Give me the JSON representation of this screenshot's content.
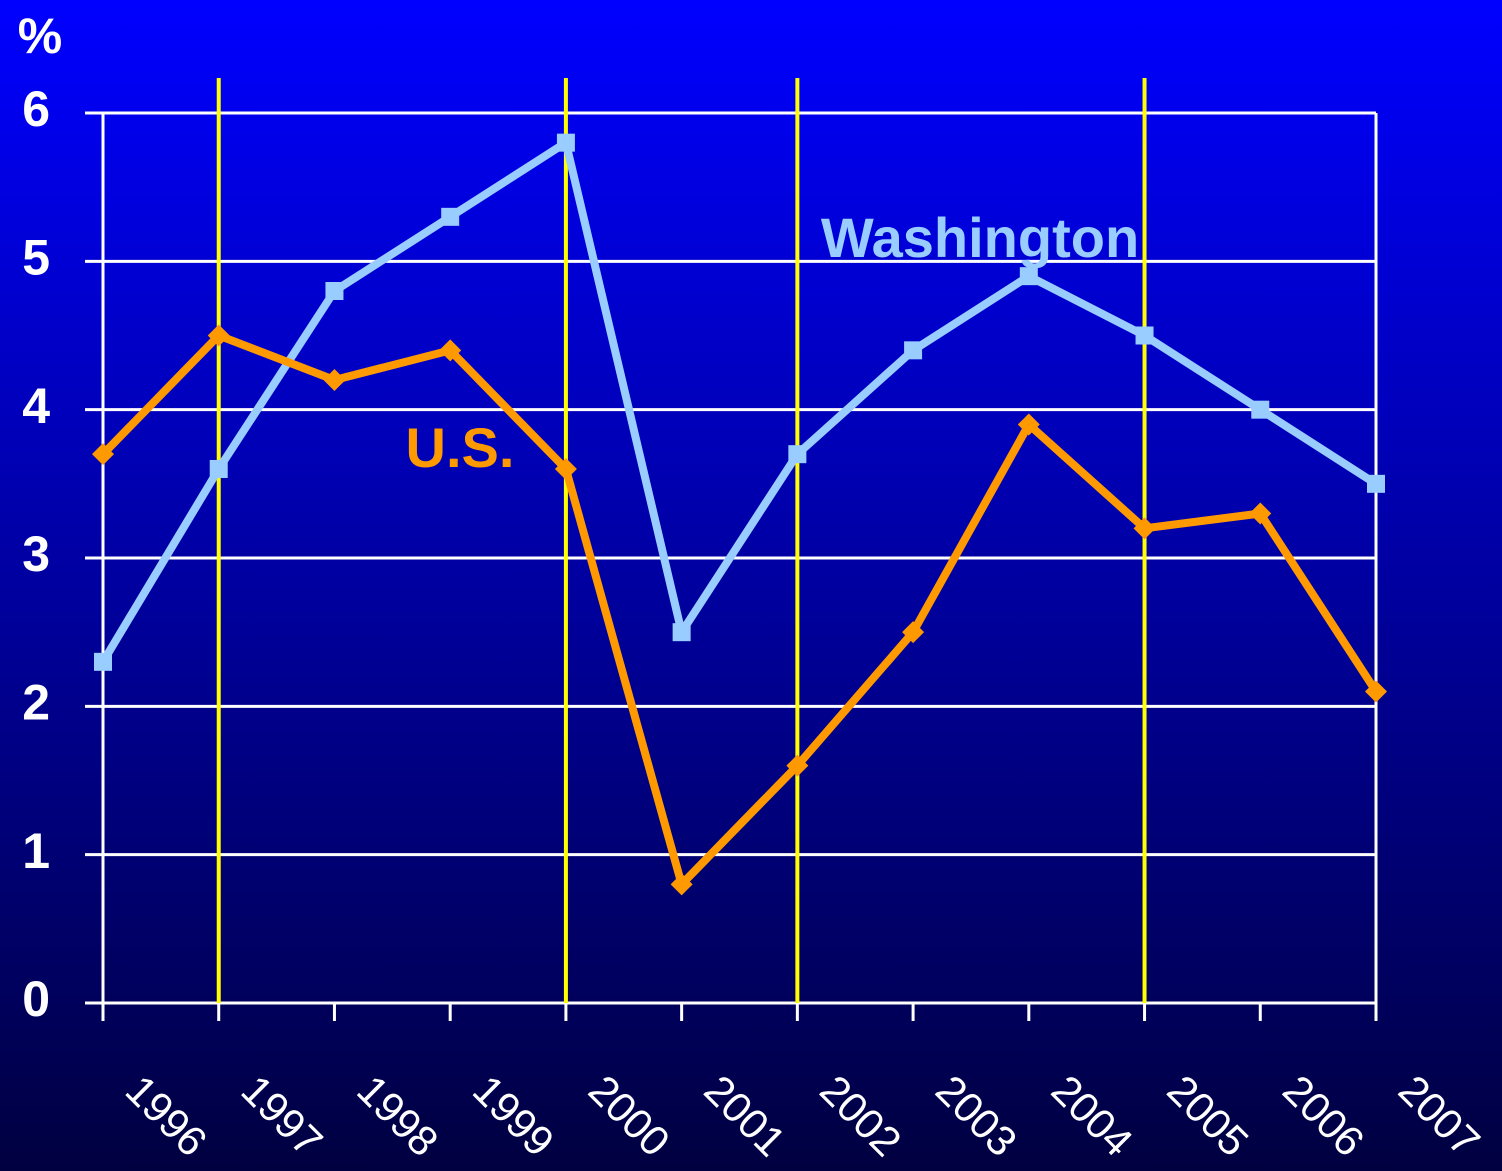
{
  "chart_data": {
    "type": "line",
    "y_label": "%",
    "categories": [
      "1996",
      "1997",
      "1998",
      "1999",
      "2000",
      "2001",
      "2002",
      "2003",
      "2004",
      "2005",
      "2006",
      "2007"
    ],
    "series": [
      {
        "name": "Washington",
        "color": "#99ccff",
        "marker": "square",
        "values": [
          2.3,
          3.6,
          4.8,
          5.3,
          5.8,
          2.5,
          3.7,
          4.4,
          4.9,
          4.5,
          4.0,
          3.5
        ]
      },
      {
        "name": "U.S.",
        "color": "#ff9900",
        "marker": "diamond",
        "values": [
          3.7,
          4.5,
          4.2,
          4.4,
          3.6,
          0.8,
          1.6,
          2.5,
          3.9,
          3.2,
          3.3,
          2.1
        ]
      }
    ],
    "ylim": [
      0,
      6
    ],
    "yticks": [
      0,
      1,
      2,
      3,
      4,
      5,
      6
    ],
    "grid": true,
    "reference_lines": {
      "categories": [
        "1997",
        "2000",
        "2002",
        "2005"
      ],
      "color": "#ffff00"
    }
  }
}
